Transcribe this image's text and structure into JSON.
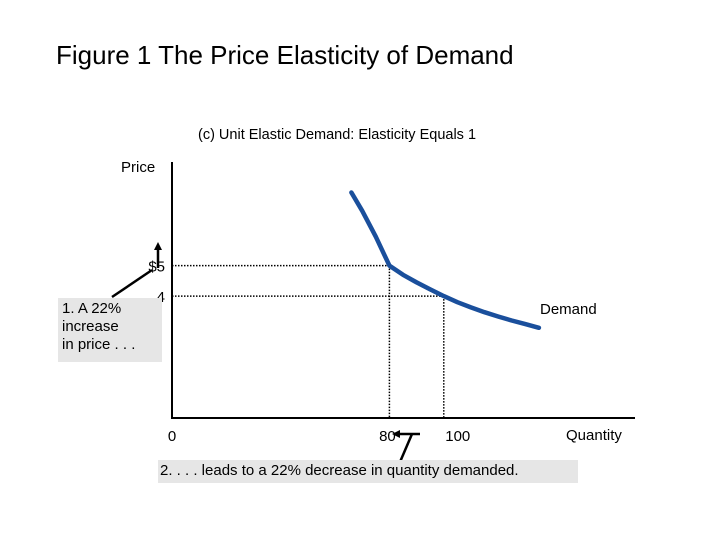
{
  "figure_title": "Figure 1 The Price Elasticity of Demand",
  "annotations": {
    "price_increase": [
      "1. A 22%",
      "increase",
      "in price . . ."
    ],
    "quantity_decrease": "2. . . . leads to a 22% decrease in quantity demanded."
  },
  "colors": {
    "curve": "#1a4f9c",
    "axis": "#000000",
    "annotation_bg": "#e6e6e6"
  },
  "chart_data": {
    "type": "line",
    "title": "(c) Unit Elastic Demand: Elasticity Equals 1",
    "xlabel": "Quantity",
    "ylabel": "Price",
    "xlim": [
      0,
      170
    ],
    "ylim": [
      0,
      8.4
    ],
    "x_ticks": [
      {
        "value": 0,
        "label": "0"
      },
      {
        "value": 80,
        "label": "80"
      },
      {
        "value": 100,
        "label": "100"
      }
    ],
    "y_ticks": [
      {
        "value": 5,
        "label": "$5"
      },
      {
        "value": 4,
        "label": "4"
      }
    ],
    "series": [
      {
        "name": "Demand",
        "x": [
          66,
          70,
          75,
          80,
          85,
          90,
          95,
          100,
          105,
          110,
          115,
          120,
          125,
          130,
          135
        ],
        "y": [
          7.4,
          6.8,
          5.95,
          5.0,
          4.7,
          4.45,
          4.22,
          4.0,
          3.8,
          3.63,
          3.47,
          3.33,
          3.2,
          3.08,
          2.96
        ]
      }
    ],
    "reference_points": [
      {
        "x": 80,
        "y": 5
      },
      {
        "x": 100,
        "y": 4
      }
    ],
    "grid": false
  }
}
